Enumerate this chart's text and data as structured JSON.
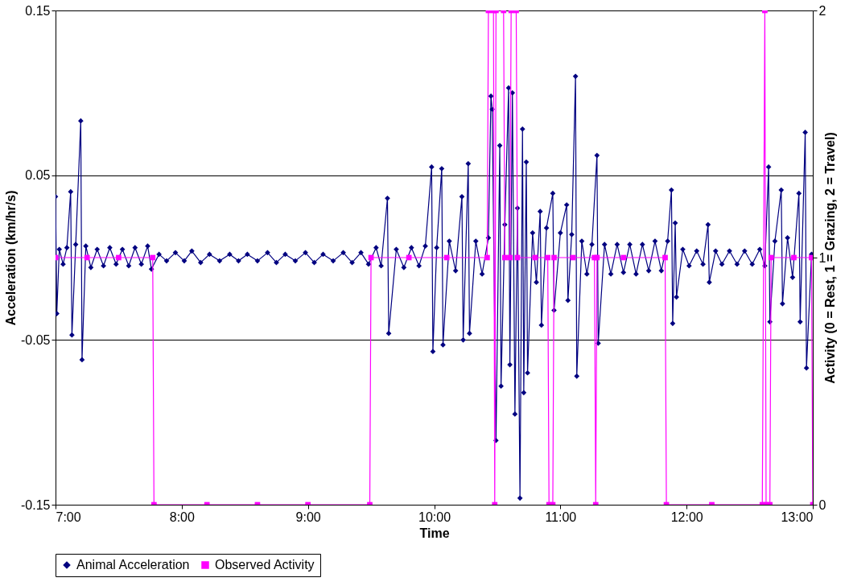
{
  "chart_data": {
    "type": "line",
    "xlabel": "Time",
    "ylabel": "Acceleration (km/hr/s)",
    "y2label": "Activity (0 = Rest, 1 = Grazing, 2 = Travel)",
    "grid": "y",
    "legend": "bottom",
    "line_style": "solid",
    "xlim": [
      7,
      13
    ],
    "xticks": [
      {
        "value": 7,
        "label": "7:00"
      },
      {
        "value": 8,
        "label": "8:00"
      },
      {
        "value": 9,
        "label": "9:00"
      },
      {
        "value": 10,
        "label": "10:00"
      },
      {
        "value": 11,
        "label": "11:00"
      },
      {
        "value": 12,
        "label": "12:00"
      },
      {
        "value": 13,
        "label": "13:00"
      }
    ],
    "ylim": [
      -0.15,
      0.15
    ],
    "yticks": [
      -0.15,
      -0.05,
      0.05,
      0.15
    ],
    "y2lim": [
      0,
      2
    ],
    "y2ticks": [
      0,
      1,
      2
    ],
    "series": [
      {
        "name": "Animal Acceleration",
        "color": "#000080",
        "marker": "diamond",
        "x": [
          7.0,
          7.01,
          7.03,
          7.06,
          7.09,
          7.12,
          7.13,
          7.16,
          7.2,
          7.21,
          7.24,
          7.28,
          7.33,
          7.38,
          7.43,
          7.48,
          7.53,
          7.58,
          7.63,
          7.68,
          7.73,
          7.76,
          7.82,
          7.88,
          7.95,
          8.02,
          8.08,
          8.15,
          8.22,
          8.3,
          8.38,
          8.45,
          8.52,
          8.6,
          8.68,
          8.75,
          8.82,
          8.9,
          8.98,
          9.05,
          9.12,
          9.2,
          9.28,
          9.35,
          9.42,
          9.48,
          9.54,
          9.58,
          9.63,
          9.64,
          9.7,
          9.76,
          9.82,
          9.88,
          9.93,
          9.98,
          9.99,
          10.02,
          10.06,
          10.07,
          10.12,
          10.17,
          10.22,
          10.23,
          10.27,
          10.28,
          10.33,
          10.38,
          10.43,
          10.45,
          10.46,
          10.49,
          10.52,
          10.53,
          10.56,
          10.59,
          10.6,
          10.62,
          10.64,
          10.66,
          10.68,
          10.7,
          10.71,
          10.73,
          10.74,
          10.78,
          10.81,
          10.84,
          10.85,
          10.89,
          10.94,
          10.95,
          11.0,
          11.05,
          11.06,
          11.09,
          11.12,
          11.13,
          11.17,
          11.21,
          11.25,
          11.29,
          11.3,
          11.35,
          11.4,
          11.45,
          11.5,
          11.55,
          11.6,
          11.65,
          11.7,
          11.75,
          11.8,
          11.85,
          11.88,
          11.89,
          11.91,
          11.92,
          11.97,
          12.02,
          12.08,
          12.13,
          12.17,
          12.18,
          12.23,
          12.28,
          12.34,
          12.4,
          12.46,
          12.52,
          12.58,
          12.62,
          12.65,
          12.66,
          12.7,
          12.75,
          12.76,
          12.8,
          12.84,
          12.89,
          12.9,
          12.94,
          12.95,
          12.99
        ],
        "values": [
          0.037,
          -0.034,
          0.005,
          -0.004,
          0.006,
          0.04,
          -0.047,
          0.008,
          0.083,
          -0.062,
          0.007,
          -0.006,
          0.005,
          -0.005,
          0.006,
          -0.004,
          0.005,
          -0.005,
          0.006,
          -0.004,
          0.007,
          -0.007,
          0.002,
          -0.002,
          0.003,
          -0.002,
          0.004,
          -0.003,
          0.002,
          -0.002,
          0.002,
          -0.002,
          0.002,
          -0.002,
          0.003,
          -0.003,
          0.002,
          -0.002,
          0.003,
          -0.003,
          0.002,
          -0.002,
          0.003,
          -0.003,
          0.003,
          -0.004,
          0.006,
          -0.005,
          0.036,
          -0.046,
          0.005,
          -0.006,
          0.006,
          -0.005,
          0.007,
          0.055,
          -0.057,
          0.006,
          0.054,
          -0.053,
          0.01,
          -0.008,
          0.037,
          -0.05,
          0.057,
          -0.046,
          0.01,
          -0.01,
          0.012,
          0.098,
          0.09,
          -0.111,
          0.068,
          -0.078,
          0.02,
          0.103,
          -0.065,
          0.1,
          -0.095,
          0.03,
          -0.146,
          0.078,
          -0.082,
          0.058,
          -0.07,
          0.015,
          -0.015,
          0.028,
          -0.041,
          0.018,
          0.039,
          -0.032,
          0.015,
          0.032,
          -0.026,
          0.014,
          0.11,
          -0.072,
          0.01,
          -0.01,
          0.008,
          0.062,
          -0.052,
          0.008,
          -0.01,
          0.008,
          -0.009,
          0.008,
          -0.01,
          0.008,
          -0.008,
          0.01,
          -0.008,
          0.01,
          0.041,
          -0.04,
          0.021,
          -0.024,
          0.005,
          -0.005,
          0.004,
          -0.004,
          0.02,
          -0.015,
          0.004,
          -0.004,
          0.004,
          -0.004,
          0.004,
          -0.004,
          0.005,
          -0.005,
          0.055,
          -0.039,
          0.01,
          0.041,
          -0.028,
          0.012,
          -0.012,
          0.039,
          -0.039,
          0.076,
          -0.067,
          0.002
        ]
      },
      {
        "name": "Observed Activity",
        "color": "#ff00ff",
        "marker": "square",
        "axis": "y2",
        "x": [
          7.0,
          7.25,
          7.5,
          7.77,
          7.78,
          8.2,
          8.6,
          9.0,
          9.49,
          9.5,
          9.8,
          10.1,
          10.42,
          10.43,
          10.47,
          10.48,
          10.49,
          10.55,
          10.56,
          10.6,
          10.61,
          10.65,
          10.66,
          10.8,
          10.9,
          10.91,
          10.94,
          10.95,
          11.1,
          11.27,
          11.28,
          11.29,
          11.5,
          11.83,
          11.84,
          12.2,
          12.6,
          12.62,
          12.63,
          12.66,
          12.67,
          12.85,
          12.99,
          13.0
        ],
        "values": [
          1,
          1,
          1,
          1,
          0,
          0,
          0,
          0,
          0,
          1,
          1,
          1,
          1,
          2,
          2,
          0,
          2,
          2,
          1,
          1,
          2,
          2,
          1,
          1,
          1,
          0,
          0,
          1,
          1,
          1,
          0,
          1,
          1,
          1,
          0,
          0,
          0,
          2,
          0,
          0,
          1,
          1,
          1,
          0
        ]
      }
    ]
  }
}
